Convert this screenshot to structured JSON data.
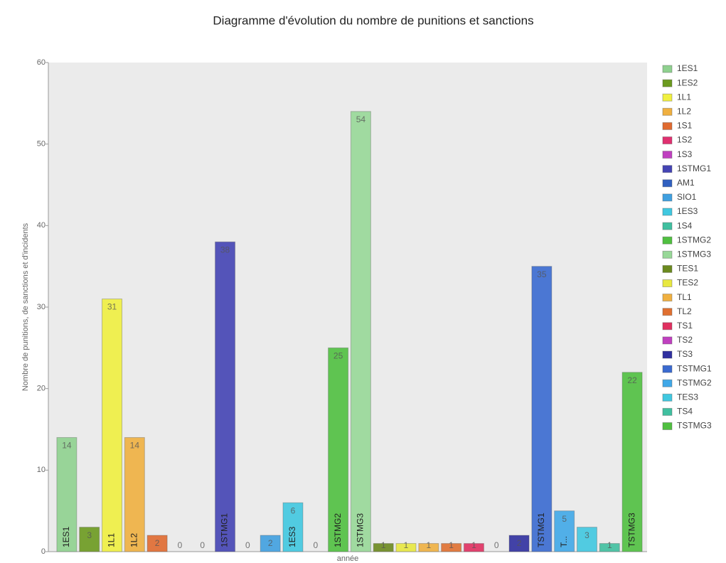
{
  "chart_data": {
    "type": "bar",
    "title": "Diagramme d'évolution du nombre de punitions et sanctions",
    "y_label": "Nombre de punitions, de sanctions et d'incidents",
    "x_label": "année",
    "categories": [
      "1ES1",
      "1ES2",
      "1L1",
      "1L2",
      "1S1",
      "1S2",
      "1S3",
      "1STMG1",
      "AM1",
      "SIO1",
      "1ES3",
      "1S4",
      "1STMG2",
      "1STMG3",
      "TES1",
      "TES2",
      "TL1",
      "TL2",
      "TS1",
      "TS2",
      "TS3",
      "TSTMG1",
      "TSTMG2",
      "TES3",
      "TS4",
      "TSTMG3"
    ],
    "values": [
      14,
      3,
      31,
      14,
      2,
      0,
      0,
      38,
      0,
      2,
      6,
      0,
      25,
      54,
      1,
      1,
      1,
      1,
      1,
      0,
      2,
      35,
      5,
      3,
      1,
      22
    ],
    "bar_labels": [
      "1ES1",
      null,
      "1L1",
      "1L2",
      null,
      null,
      null,
      "1STMG1",
      null,
      null,
      "1ES3",
      null,
      "1STMG2",
      "1STMG3",
      null,
      null,
      null,
      null,
      null,
      null,
      null,
      "TSTMG1",
      "T...",
      null,
      null,
      "TSTMG3"
    ],
    "colors": [
      "#8fd18f",
      "#6b9a1f",
      "#f0f040",
      "#f0b040",
      "#e06a30",
      "#e03070",
      "#c040c0",
      "#4444b4",
      "#3060c0",
      "#40a0e0",
      "#40c8e0",
      "#40c0a0",
      "#50c040",
      "#98d898",
      "#6b8a1f",
      "#e8e840",
      "#f0b040",
      "#e07030",
      "#e03060",
      "#c040c0",
      "#3030a0",
      "#3a6ad0",
      "#40a8e8",
      "#40c8e0",
      "#40c0a0",
      "#50c040"
    ],
    "ylim": [
      0,
      60
    ],
    "yticks": [
      0,
      10,
      20,
      30,
      40,
      50,
      60
    ],
    "grid": false,
    "legend": "right"
  }
}
